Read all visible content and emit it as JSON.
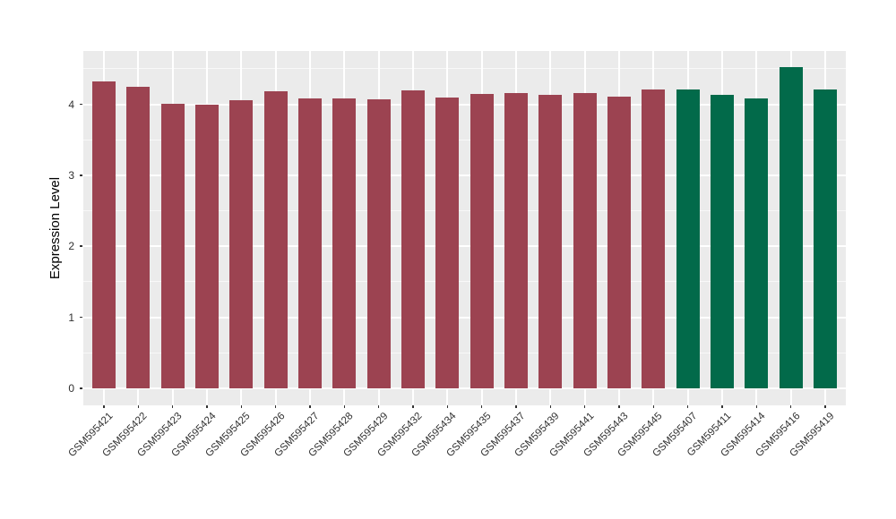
{
  "chart_data": {
    "type": "bar",
    "title": "",
    "xlabel": "",
    "ylabel": "Expression Level",
    "categories": [
      "GSM595421",
      "GSM595422",
      "GSM595423",
      "GSM595424",
      "GSM595425",
      "GSM595426",
      "GSM595427",
      "GSM595428",
      "GSM595429",
      "GSM595432",
      "GSM595434",
      "GSM595435",
      "GSM595437",
      "GSM595439",
      "GSM595441",
      "GSM595443",
      "GSM595445",
      "GSM595407",
      "GSM595411",
      "GSM595414",
      "GSM595416",
      "GSM595419"
    ],
    "values": [
      4.32,
      4.25,
      4.01,
      4.0,
      4.06,
      4.18,
      4.08,
      4.08,
      4.07,
      4.19,
      4.1,
      4.15,
      4.16,
      4.13,
      4.16,
      4.11,
      4.21,
      4.21,
      4.13,
      4.08,
      4.52,
      4.21
    ],
    "bar_groups": [
      0,
      0,
      0,
      0,
      0,
      0,
      0,
      0,
      0,
      0,
      0,
      0,
      0,
      0,
      0,
      0,
      0,
      1,
      1,
      1,
      1,
      1
    ],
    "group_colors": [
      "#9C4351",
      "#026A4A"
    ],
    "yticks": [
      0,
      1,
      2,
      3,
      4
    ],
    "yminor": [
      0.5,
      1.5,
      2.5,
      3.5,
      4.5
    ],
    "ylim": [
      -0.24,
      4.75
    ],
    "grid": true,
    "legend_position": "none",
    "panel_background": "#EBEBEB",
    "grid_color": "#FFFFFF",
    "tick_text_color": "#303030",
    "x_label_angle_deg": 45
  }
}
